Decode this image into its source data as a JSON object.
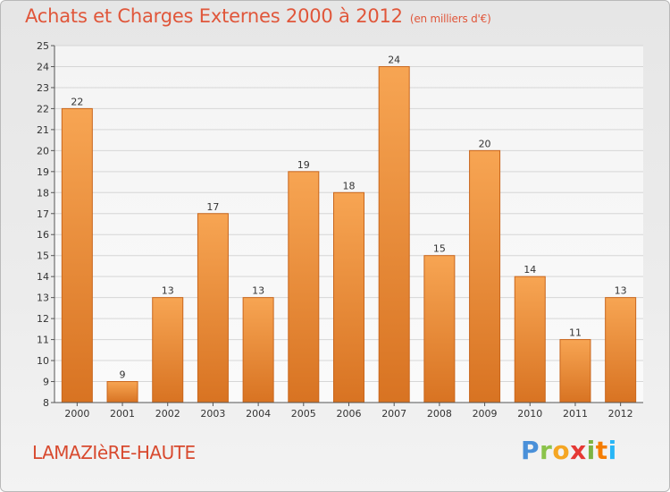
{
  "header": {
    "title": "Achats et Charges Externes 2000 à 2012",
    "subtitle": "(en milliers d'€)"
  },
  "footer": {
    "commune": "LAMAZIèRE-HAUTE",
    "brand": "Proxiti"
  },
  "colors": {
    "title": "#e0563a",
    "bar_top": "#f7a553",
    "bar_bottom": "#d87322",
    "bar_edge": "#c9661c"
  },
  "chart_data": {
    "type": "bar",
    "categories": [
      "2000",
      "2001",
      "2002",
      "2003",
      "2004",
      "2005",
      "2006",
      "2007",
      "2008",
      "2009",
      "2010",
      "2011",
      "2012"
    ],
    "values": [
      22,
      9,
      13,
      17,
      13,
      19,
      18,
      24,
      15,
      20,
      14,
      11,
      13
    ],
    "data_labels": [
      "22",
      "9",
      "13",
      "17",
      "13",
      "19",
      "18",
      "24",
      "15",
      "20",
      "14",
      "11",
      "13"
    ],
    "ylim": [
      8,
      25
    ],
    "yticks": [
      "8",
      "9",
      "10",
      "11",
      "12",
      "13",
      "14",
      "15",
      "16",
      "17",
      "18",
      "19",
      "20",
      "21",
      "22",
      "23",
      "24",
      "25"
    ],
    "grid": true,
    "xlabel": "",
    "ylabel": ""
  }
}
